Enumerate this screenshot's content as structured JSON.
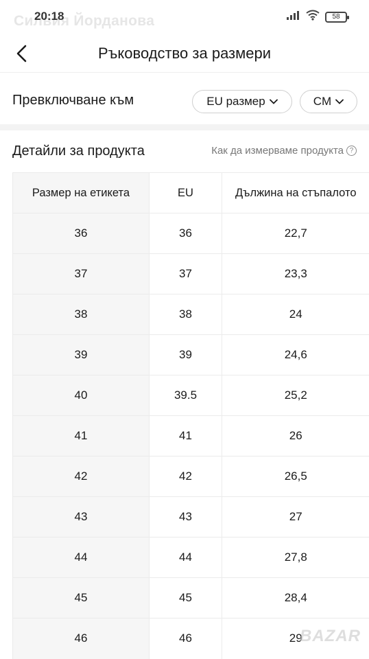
{
  "status_bar": {
    "time": "20:18",
    "battery": "58",
    "watermark_name": "Силвия Йорданова"
  },
  "header": {
    "title": "Ръководство за размери"
  },
  "switch": {
    "label": "Превключване към",
    "size_option": "EU размер",
    "unit_option": "CM"
  },
  "details": {
    "title": "Детайли за продукта",
    "measure_link": "Как да измерваме продукта"
  },
  "table": {
    "headers": [
      "Размер на етикета",
      "EU",
      "Дължина на стъпалото"
    ],
    "rows": [
      [
        "36",
        "36",
        "22,7"
      ],
      [
        "37",
        "37",
        "23,3"
      ],
      [
        "38",
        "38",
        "24"
      ],
      [
        "39",
        "39",
        "24,6"
      ],
      [
        "40",
        "39.5",
        "25,2"
      ],
      [
        "41",
        "41",
        "26"
      ],
      [
        "42",
        "42",
        "26,5"
      ],
      [
        "43",
        "43",
        "27"
      ],
      [
        "44",
        "44",
        "27,8"
      ],
      [
        "45",
        "45",
        "28,4"
      ],
      [
        "46",
        "46",
        "29"
      ]
    ]
  },
  "brand_watermark": "BAZAR",
  "icons": {
    "back": "chevron-left-icon",
    "help": "question-circle-icon",
    "dropdown": "chevron-down-icon",
    "wifi": "wifi-icon",
    "signal": "signal-icon",
    "battery": "battery-icon"
  }
}
